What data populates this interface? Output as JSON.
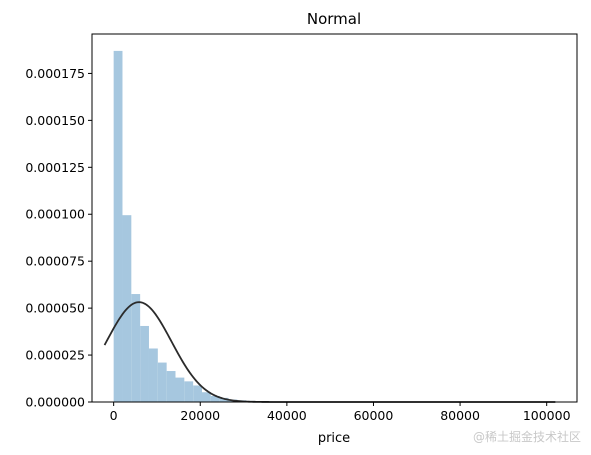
{
  "chart_data": {
    "type": "bar",
    "title": "Normal",
    "xlabel": "price",
    "ylabel": "",
    "xlim": [
      -5000,
      107000
    ],
    "ylim": [
      0,
      0.000196
    ],
    "x_ticks": [
      0,
      20000,
      40000,
      60000,
      80000,
      100000
    ],
    "x_tick_labels": [
      "0",
      "20000",
      "40000",
      "60000",
      "80000",
      "100000"
    ],
    "y_ticks": [
      0.0,
      2.5e-05,
      5e-05,
      7.5e-05,
      0.0001,
      0.000125,
      0.00015,
      0.000175
    ],
    "y_tick_labels": [
      "0.000000",
      "0.000025",
      "0.000050",
      "0.000075",
      "0.000100",
      "0.000125",
      "0.000150",
      "0.000175"
    ],
    "grid": false,
    "histogram": {
      "bin_start": 0,
      "bin_width": 2040,
      "values": [
        0.000187,
        9.95e-05,
        5.75e-05,
        4.05e-05,
        2.85e-05,
        2.1e-05,
        1.65e-05,
        1.3e-05,
        1.1e-05,
        8.8e-06,
        5.2e-06,
        3.2e-06,
        2.2e-06,
        1.3e-06,
        9e-07,
        6e-07,
        4e-07,
        3e-07,
        2e-07,
        1e-07,
        1e-07,
        1e-07,
        1e-07,
        1e-07,
        1e-07,
        1e-07,
        1e-07,
        1e-07,
        1e-07,
        1e-07,
        1e-07,
        1e-07,
        1e-07,
        1e-07,
        1e-07,
        1e-07,
        1e-07,
        1e-07,
        1e-07,
        1e-07,
        1e-07,
        1e-07,
        1e-07,
        1e-07,
        1e-07,
        1e-07,
        1e-07,
        1e-07,
        1e-07,
        1e-07
      ],
      "color": "#a6c7df"
    },
    "fit_curve": {
      "kind": "normal",
      "mean": 5850,
      "std": 7500,
      "x_range": [
        -2100,
        102000
      ],
      "color": "#2b2b2b"
    }
  },
  "watermark": "@稀土掘金技术社区"
}
